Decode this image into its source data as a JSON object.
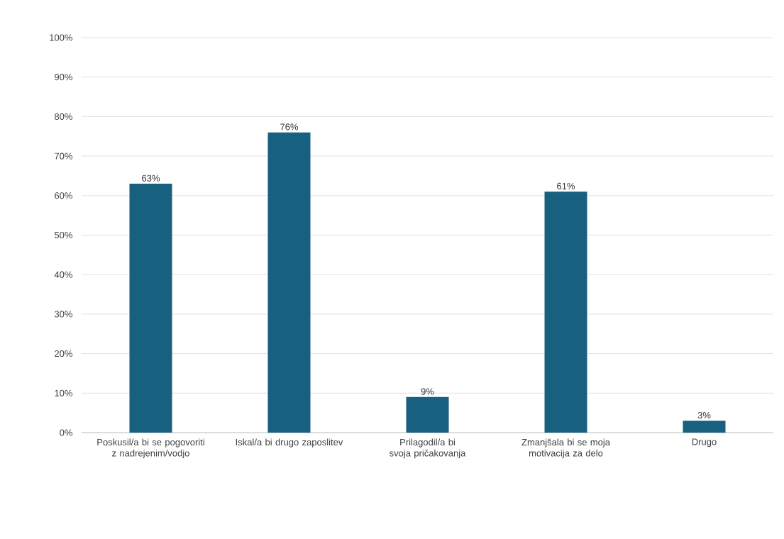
{
  "chart_data": {
    "type": "bar",
    "categories": [
      "Poskusil/a bi se pogovoriti z nadrejenim/vodjo",
      "Iskal/a bi drugo zaposlitev",
      "Prilagodil/a bi svoja pričakovanja",
      "Zmanjšala bi se moja motivacija za delo",
      "Drugo"
    ],
    "values": [
      63,
      76,
      9,
      61,
      3
    ],
    "value_labels": [
      "63%",
      "76%",
      "9%",
      "61%",
      "3%"
    ],
    "color": "#17607f",
    "ylim": [
      0,
      100
    ],
    "yticks": [
      {
        "value": 0,
        "label": "0%"
      },
      {
        "value": 10,
        "label": "10%"
      },
      {
        "value": 20,
        "label": "20%"
      },
      {
        "value": 30,
        "label": "30%"
      },
      {
        "value": 40,
        "label": "40%"
      },
      {
        "value": 50,
        "label": "50%"
      },
      {
        "value": 60,
        "label": "60%"
      },
      {
        "value": 70,
        "label": "70%"
      },
      {
        "value": 80,
        "label": "80%"
      },
      {
        "value": 90,
        "label": "90%"
      },
      {
        "value": 100,
        "label": "100%"
      }
    ],
    "grid": "y"
  }
}
